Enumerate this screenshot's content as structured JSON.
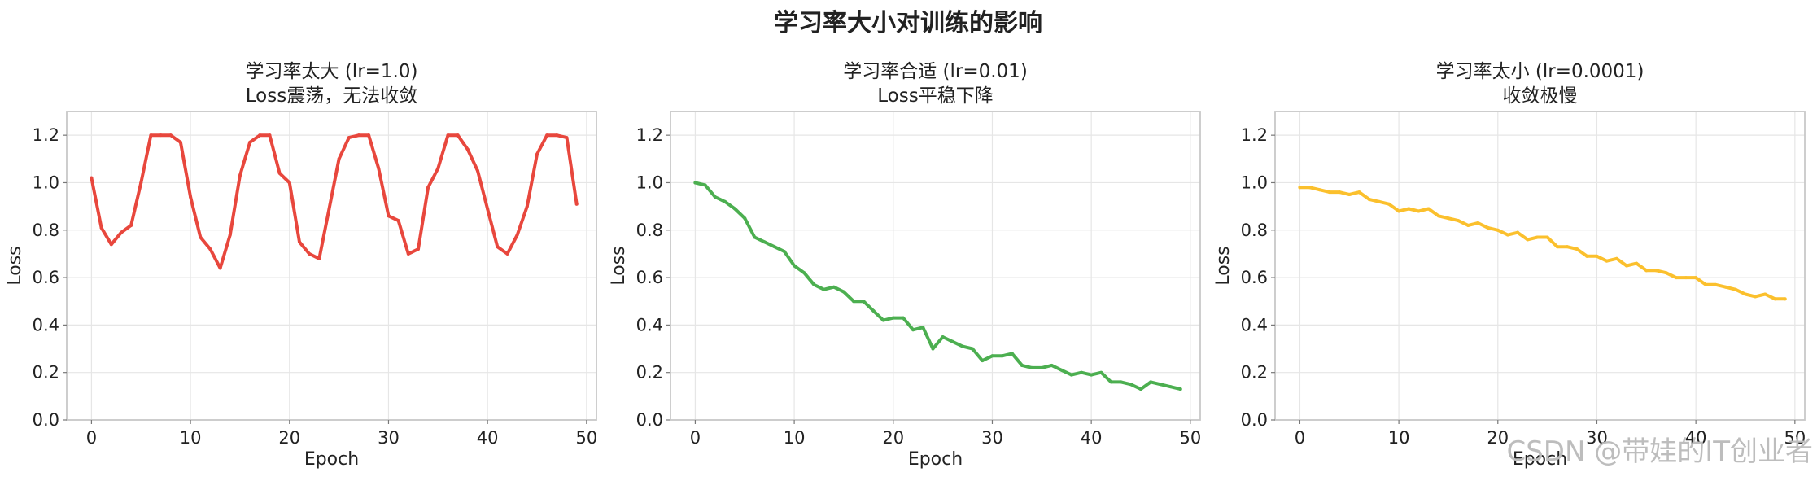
{
  "figure": {
    "suptitle": "学习率大小对训练的影响",
    "watermark": "CSDN @带娃的IT创业者"
  },
  "chart_data": [
    {
      "type": "line",
      "title_line1": "学习率太大 (lr=1.0)",
      "title_line2": "Loss震荡，无法收敛",
      "xlabel": "Epoch",
      "ylabel": "Loss",
      "xlim": [
        -2.5,
        51
      ],
      "ylim": [
        0,
        1.3
      ],
      "xticks": [
        0,
        10,
        20,
        30,
        40,
        50
      ],
      "yticks": [
        0.0,
        0.2,
        0.4,
        0.6,
        0.8,
        1.0,
        1.2
      ],
      "grid": true,
      "color": "#e8473d",
      "series": [
        {
          "x": [
            0,
            1,
            2,
            3,
            4,
            5,
            6,
            7,
            8,
            9,
            10,
            11,
            12,
            13,
            14,
            15,
            16,
            17,
            18,
            19,
            20,
            21,
            22,
            23,
            24,
            25,
            26,
            27,
            28,
            29,
            30,
            31,
            32,
            33,
            34,
            35,
            36,
            37,
            38,
            39,
            40,
            41,
            42,
            43,
            44,
            45,
            46,
            47,
            48,
            49
          ],
          "values": [
            1.02,
            0.81,
            0.74,
            0.79,
            0.82,
            1.0,
            1.2,
            1.2,
            1.2,
            1.17,
            0.94,
            0.77,
            0.72,
            0.64,
            0.78,
            1.03,
            1.17,
            1.2,
            1.2,
            1.04,
            1.0,
            0.75,
            0.7,
            0.68,
            0.89,
            1.1,
            1.19,
            1.2,
            1.2,
            1.06,
            0.86,
            0.84,
            0.7,
            0.72,
            0.98,
            1.06,
            1.2,
            1.2,
            1.14,
            1.05,
            0.89,
            0.73,
            0.7,
            0.78,
            0.9,
            1.12,
            1.2,
            1.2,
            1.19,
            0.91
          ]
        }
      ]
    },
    {
      "type": "line",
      "title_line1": "学习率合适 (lr=0.01)",
      "title_line2": "Loss平稳下降",
      "xlabel": "Epoch",
      "ylabel": "Loss",
      "xlim": [
        -2.5,
        51
      ],
      "ylim": [
        0,
        1.3
      ],
      "xticks": [
        0,
        10,
        20,
        30,
        40,
        50
      ],
      "yticks": [
        0.0,
        0.2,
        0.4,
        0.6,
        0.8,
        1.0,
        1.2
      ],
      "grid": true,
      "color": "#4caf50",
      "series": [
        {
          "x": [
            0,
            1,
            2,
            3,
            4,
            5,
            6,
            7,
            8,
            9,
            10,
            11,
            12,
            13,
            14,
            15,
            16,
            17,
            18,
            19,
            20,
            21,
            22,
            23,
            24,
            25,
            26,
            27,
            28,
            29,
            30,
            31,
            32,
            33,
            34,
            35,
            36,
            37,
            38,
            39,
            40,
            41,
            42,
            43,
            44,
            45,
            46,
            47,
            48,
            49
          ],
          "values": [
            1.0,
            0.99,
            0.94,
            0.92,
            0.89,
            0.85,
            0.77,
            0.75,
            0.73,
            0.71,
            0.65,
            0.62,
            0.57,
            0.55,
            0.56,
            0.54,
            0.5,
            0.5,
            0.46,
            0.42,
            0.43,
            0.43,
            0.38,
            0.39,
            0.3,
            0.35,
            0.33,
            0.31,
            0.3,
            0.25,
            0.27,
            0.27,
            0.28,
            0.23,
            0.22,
            0.22,
            0.23,
            0.21,
            0.19,
            0.2,
            0.19,
            0.2,
            0.16,
            0.16,
            0.15,
            0.13,
            0.16,
            0.15,
            0.14,
            0.13
          ]
        }
      ]
    },
    {
      "type": "line",
      "title_line1": "学习率太小 (lr=0.0001)",
      "title_line2": "收敛极慢",
      "xlabel": "Epoch",
      "ylabel": "Loss",
      "xlim": [
        -2.5,
        51
      ],
      "ylim": [
        0,
        1.3
      ],
      "xticks": [
        0,
        10,
        20,
        30,
        40,
        50
      ],
      "yticks": [
        0.0,
        0.2,
        0.4,
        0.6,
        0.8,
        1.0,
        1.2
      ],
      "grid": true,
      "color": "#fbc02d",
      "series": [
        {
          "x": [
            0,
            1,
            2,
            3,
            4,
            5,
            6,
            7,
            8,
            9,
            10,
            11,
            12,
            13,
            14,
            15,
            16,
            17,
            18,
            19,
            20,
            21,
            22,
            23,
            24,
            25,
            26,
            27,
            28,
            29,
            30,
            31,
            32,
            33,
            34,
            35,
            36,
            37,
            38,
            39,
            40,
            41,
            42,
            43,
            44,
            45,
            46,
            47,
            48,
            49
          ],
          "values": [
            0.98,
            0.98,
            0.97,
            0.96,
            0.96,
            0.95,
            0.96,
            0.93,
            0.92,
            0.91,
            0.88,
            0.89,
            0.88,
            0.89,
            0.86,
            0.85,
            0.84,
            0.82,
            0.83,
            0.81,
            0.8,
            0.78,
            0.79,
            0.76,
            0.77,
            0.77,
            0.73,
            0.73,
            0.72,
            0.69,
            0.69,
            0.67,
            0.68,
            0.65,
            0.66,
            0.63,
            0.63,
            0.62,
            0.6,
            0.6,
            0.6,
            0.57,
            0.57,
            0.56,
            0.55,
            0.53,
            0.52,
            0.53,
            0.51,
            0.51
          ]
        }
      ]
    }
  ]
}
